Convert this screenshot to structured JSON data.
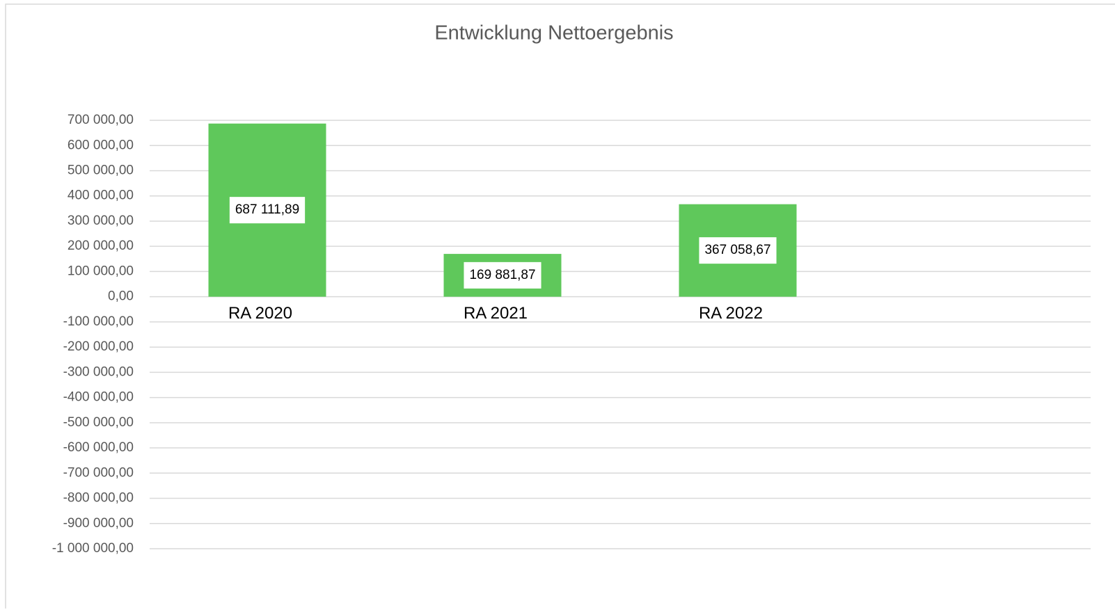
{
  "chart_data": {
    "type": "bar",
    "title": "Entwicklung Nettoergebnis",
    "categories": [
      "RA 2020",
      "RA 2021",
      "RA 2022",
      null
    ],
    "values": [
      687111.89,
      169881.87,
      367058.67,
      null
    ],
    "value_labels": [
      "687 111,89",
      "169 881,87",
      "367 058,67",
      null
    ],
    "color": "#5fc85b",
    "ylim": [
      -1000000,
      700000
    ],
    "yticks": [
      {
        "value": -1000000,
        "label": "-1 000 000,00"
      },
      {
        "value": -900000,
        "label": "-900 000,00"
      },
      {
        "value": -800000,
        "label": "-800 000,00"
      },
      {
        "value": -700000,
        "label": "-700 000,00"
      },
      {
        "value": -600000,
        "label": "-600 000,00"
      },
      {
        "value": -500000,
        "label": "-500 000,00"
      },
      {
        "value": -400000,
        "label": "-400 000,00"
      },
      {
        "value": -300000,
        "label": "-300 000,00"
      },
      {
        "value": -200000,
        "label": "-200 000,00"
      },
      {
        "value": -100000,
        "label": "-100 000,00"
      },
      {
        "value": 0,
        "label": "0,00"
      },
      {
        "value": 100000,
        "label": "100 000,00"
      },
      {
        "value": 200000,
        "label": "200 000,00"
      },
      {
        "value": 300000,
        "label": "300 000,00"
      },
      {
        "value": 400000,
        "label": "400 000,00"
      },
      {
        "value": 500000,
        "label": "500 000,00"
      },
      {
        "value": 600000,
        "label": "600 000,00"
      },
      {
        "value": 700000,
        "label": "700 000,00"
      }
    ],
    "grid": true
  }
}
